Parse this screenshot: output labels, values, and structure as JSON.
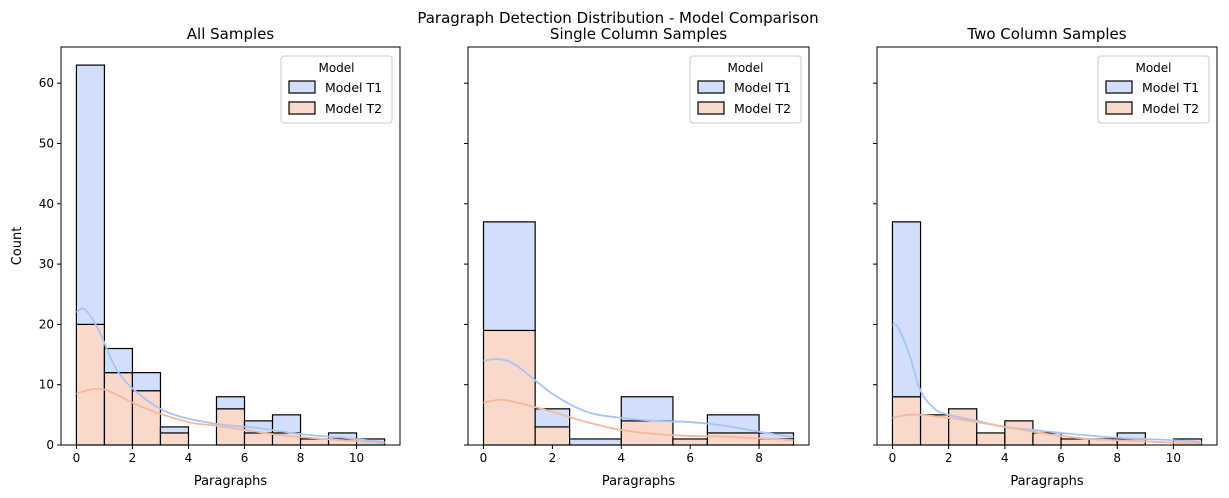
{
  "figure": {
    "suptitle": "Paragraph Detection Distribution - Model Comparison"
  },
  "colors": {
    "model_t1_fill": "#d2dffc",
    "model_t2_fill": "#f8d9cb",
    "model_t1_kde": "#a8c4f7",
    "model_t2_kde": "#f5b89b",
    "bar_edge": "#000000"
  },
  "chart_data": [
    {
      "type": "bar",
      "subtype": "stacked-histogram-with-kde",
      "title": "All Samples",
      "xlabel": "Paragraphs",
      "ylabel": "Count",
      "xlim": [
        -0.55,
        11.55
      ],
      "ylim": [
        0,
        66
      ],
      "xticks": [
        0,
        2,
        4,
        6,
        8,
        10
      ],
      "yticks": [
        0,
        10,
        20,
        30,
        40,
        50,
        60
      ],
      "grid": false,
      "legend": {
        "title": "Model",
        "placement": "top-right",
        "entries": [
          "Model T1",
          "Model T2"
        ]
      },
      "bin_edges": [
        0,
        1,
        2,
        3,
        4,
        5,
        6,
        7,
        8,
        9,
        10,
        11
      ],
      "series": [
        {
          "name": "Model T2",
          "values": [
            20,
            12,
            9,
            2,
            0,
            6,
            2,
            2,
            1,
            1,
            0
          ]
        },
        {
          "name": "Model T1",
          "values": [
            43,
            4,
            3,
            1,
            0,
            2,
            2,
            3,
            0,
            1,
            1
          ]
        }
      ],
      "kde": [
        {
          "name": "Model T1",
          "x": [
            0,
            0.3,
            0.8,
            1.5,
            2.5,
            3.5,
            5,
            6.5,
            8,
            9.5,
            11
          ],
          "y": [
            22,
            22.5,
            19,
            12,
            7.5,
            5,
            3.5,
            2.8,
            1.8,
            1.2,
            0.5
          ]
        },
        {
          "name": "Model T2",
          "x": [
            0,
            0.5,
            1,
            1.5,
            2.5,
            4,
            5,
            6,
            7,
            8,
            9.5,
            11
          ],
          "y": [
            8.5,
            9.2,
            9.2,
            8.2,
            6,
            3.8,
            3.2,
            2.5,
            1.8,
            1.3,
            0.8,
            0.3
          ]
        }
      ]
    },
    {
      "type": "bar",
      "subtype": "stacked-histogram-with-kde",
      "title": "Single Column Samples",
      "xlabel": "Paragraphs",
      "ylabel": "",
      "xlim": [
        -0.45,
        9.45
      ],
      "ylim": [
        0,
        66
      ],
      "xticks": [
        0,
        2,
        4,
        6,
        8
      ],
      "yticks": [
        0,
        10,
        20,
        30,
        40,
        50,
        60
      ],
      "grid": false,
      "legend": {
        "title": "Model",
        "placement": "top-right",
        "entries": [
          "Model T1",
          "Model T2"
        ]
      },
      "bin_edges": [
        0,
        1.5,
        2.5,
        4,
        5.5,
        6.5,
        8,
        9
      ],
      "series": [
        {
          "name": "Model T2",
          "values": [
            19,
            3,
            0,
            4,
            1,
            2,
            1
          ]
        },
        {
          "name": "Model T1",
          "values": [
            18,
            3,
            1,
            4,
            0,
            3,
            1
          ]
        }
      ],
      "kde": [
        {
          "name": "Model T1",
          "x": [
            0,
            0.5,
            1,
            2,
            3,
            4,
            5,
            6,
            7,
            8,
            9
          ],
          "y": [
            14,
            14.2,
            13,
            8.5,
            5.5,
            4.5,
            4,
            3.8,
            3.2,
            2.2,
            1.3
          ]
        },
        {
          "name": "Model T2",
          "x": [
            0,
            0.5,
            1,
            2,
            3,
            4,
            5,
            6,
            7,
            8,
            9
          ],
          "y": [
            7,
            7.5,
            7,
            5.5,
            3.8,
            2.5,
            1.8,
            1.5,
            1.4,
            1.1,
            0.8
          ]
        }
      ]
    },
    {
      "type": "bar",
      "subtype": "stacked-histogram-with-kde",
      "title": "Two Column Samples",
      "xlabel": "Paragraphs",
      "ylabel": "",
      "xlim": [
        -0.55,
        11.55
      ],
      "ylim": [
        0,
        66
      ],
      "xticks": [
        0,
        2,
        4,
        6,
        8,
        10
      ],
      "yticks": [
        0,
        10,
        20,
        30,
        40,
        50,
        60
      ],
      "grid": false,
      "legend": {
        "title": "Model",
        "placement": "top-right",
        "entries": [
          "Model T1",
          "Model T2"
        ]
      },
      "bin_edges": [
        0,
        1,
        2,
        3,
        4,
        5,
        6,
        7,
        8,
        9,
        10,
        11
      ],
      "series": [
        {
          "name": "Model T2",
          "values": [
            8,
            5,
            6,
            2,
            4,
            2,
            1,
            1,
            1,
            0,
            1
          ]
        },
        {
          "name": "Model T1",
          "values": [
            29,
            0,
            0,
            0,
            0,
            0,
            0,
            0,
            1,
            0,
            0
          ]
        }
      ],
      "kde": [
        {
          "name": "Model T1",
          "x": [
            0,
            0.2,
            0.6,
            1,
            1.5,
            2,
            3,
            4,
            5,
            6,
            8,
            10,
            11
          ],
          "y": [
            20,
            19.5,
            15,
            9,
            6,
            5,
            4,
            3,
            2.5,
            2,
            1.2,
            0.8,
            0.5
          ]
        },
        {
          "name": "Model T2",
          "x": [
            0,
            0.5,
            1,
            2,
            3,
            4,
            5,
            6,
            7,
            8,
            9,
            10,
            11
          ],
          "y": [
            4.5,
            5,
            5,
            4.5,
            3.8,
            3,
            2.2,
            1.5,
            1,
            0.8,
            0.6,
            0.4,
            0.3
          ]
        }
      ]
    }
  ]
}
